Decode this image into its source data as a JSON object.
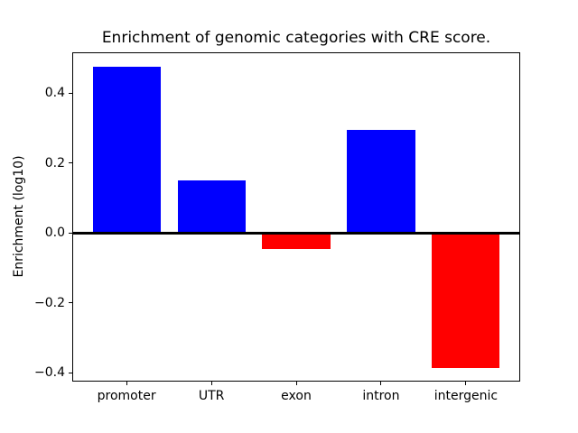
{
  "chart_data": {
    "type": "bar",
    "title": "Enrichment of genomic categories with CRE score.",
    "xlabel": "",
    "ylabel": "Enrichment (log10)",
    "categories": [
      "promoter",
      "UTR",
      "exon",
      "intron",
      "intergenic"
    ],
    "values": [
      0.475,
      0.151,
      -0.047,
      0.295,
      -0.387
    ],
    "bar_colors": [
      "#0000ff",
      "#0000ff",
      "#ff0000",
      "#0000ff",
      "#ff0000"
    ],
    "positive_color": "#0000ff",
    "negative_color": "#ff0000",
    "ylim": [
      -0.425,
      0.517
    ],
    "yticks": [
      -0.4,
      -0.2,
      0.0,
      0.2,
      0.4
    ],
    "ytick_labels": [
      "−0.4",
      "−0.2",
      "0.0",
      "0.2",
      "0.4"
    ],
    "xlim": [
      -0.64,
      4.64
    ],
    "bar_width_fraction": 0.8,
    "grid": false,
    "legend": null,
    "zero_line_color": "#000000",
    "background": "#ffffff",
    "frame_color": "#000000"
  }
}
